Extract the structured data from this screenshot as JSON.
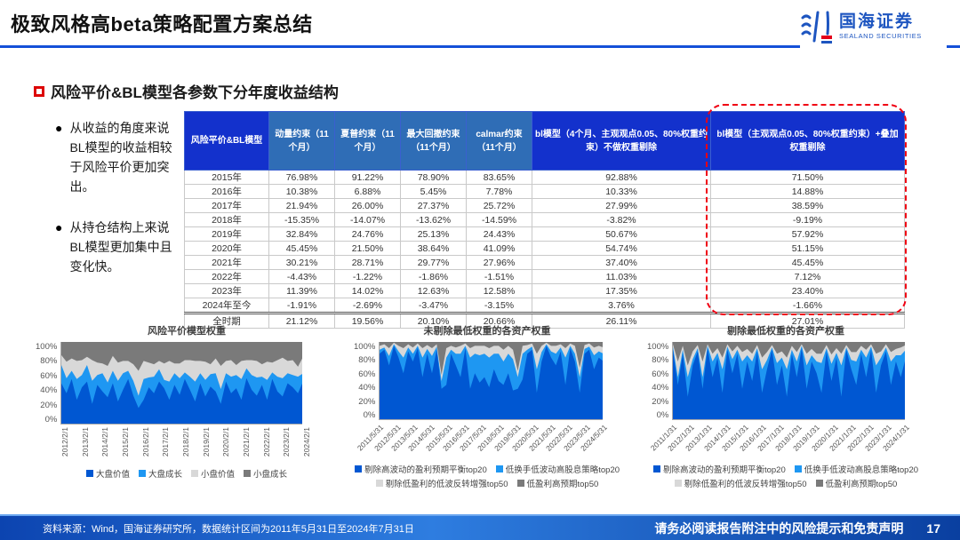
{
  "header": {
    "title": "极致风格高beta策略配置方案总结",
    "logo_cn": "国海证券",
    "logo_en": "SEALAND SECURITIES"
  },
  "section": {
    "heading": "风险平价&BL模型各参数下分年度收益结构"
  },
  "bullets": [
    "从收益的角度来说BL模型的收益相较于风险平价更加突出。",
    "从持仓结构上来说BL模型更加集中且变化快。"
  ],
  "colors": {
    "accent_blue": "#1331cc",
    "steel_blue": "#2f6db6",
    "underline_blue": "#1450d8",
    "highlight_red": "#f00012",
    "chart_dark_blue": "#0057d2",
    "chart_bright_blue": "#1e97f2",
    "chart_light_gray": "#d8d8d8",
    "chart_dark_gray": "#7a7a7a"
  },
  "table": {
    "col_headers": [
      "风险平价&BL模型",
      "动量约束（11个月）",
      "夏普约束（11个月）",
      "最大回撤约束（11个月）",
      "calmar约束（11个月）",
      "bl模型（4个月、主观观点0.05、80%权重约束）不做权重剔除",
      "bl模型（主观观点0.05、80%权重约束）+叠加权重剔除"
    ],
    "rows": [
      {
        "label": "2015年",
        "values": [
          "76.98%",
          "91.22%",
          "78.90%",
          "83.65%",
          "92.88%",
          "71.50%"
        ]
      },
      {
        "label": "2016年",
        "values": [
          "10.38%",
          "6.88%",
          "5.45%",
          "7.78%",
          "10.33%",
          "14.88%"
        ]
      },
      {
        "label": "2017年",
        "values": [
          "21.94%",
          "26.00%",
          "27.37%",
          "25.72%",
          "27.99%",
          "38.59%"
        ]
      },
      {
        "label": "2018年",
        "values": [
          "-15.35%",
          "-14.07%",
          "-13.62%",
          "-14.59%",
          "-3.82%",
          "-9.19%"
        ]
      },
      {
        "label": "2019年",
        "values": [
          "32.84%",
          "24.76%",
          "25.13%",
          "24.43%",
          "50.67%",
          "57.92%"
        ]
      },
      {
        "label": "2020年",
        "values": [
          "45.45%",
          "21.50%",
          "38.64%",
          "41.09%",
          "54.74%",
          "51.15%"
        ]
      },
      {
        "label": "2021年",
        "values": [
          "30.21%",
          "28.71%",
          "29.77%",
          "27.96%",
          "37.40%",
          "45.45%"
        ]
      },
      {
        "label": "2022年",
        "values": [
          "-4.43%",
          "-1.22%",
          "-1.86%",
          "-1.51%",
          "11.03%",
          "7.12%"
        ]
      },
      {
        "label": "2023年",
        "values": [
          "11.39%",
          "14.02%",
          "12.63%",
          "12.58%",
          "17.35%",
          "23.40%"
        ]
      },
      {
        "label": "2024年至今",
        "values": [
          "-1.91%",
          "-2.69%",
          "-3.47%",
          "-3.15%",
          "3.76%",
          "-1.66%"
        ]
      },
      {
        "label": "全时期",
        "values": [
          "21.12%",
          "19.56%",
          "20.10%",
          "20.66%",
          "26.11%",
          "27.01%"
        ]
      }
    ]
  },
  "chart_data": [
    {
      "type": "area",
      "stacked_percent": true,
      "title": "风险平价模型权重",
      "ylim": [
        0,
        100
      ],
      "y_ticks": [
        "100%",
        "80%",
        "60%",
        "40%",
        "20%",
        "0%"
      ],
      "x_ticks": [
        "2012/2/1",
        "2013/2/1",
        "2014/2/1",
        "2015/2/1",
        "2016/2/1",
        "2017/2/1",
        "2018/2/1",
        "2019/2/1",
        "2020/2/1",
        "2021/2/1",
        "2022/2/1",
        "2023/2/1",
        "2024/2/1"
      ],
      "legend": [
        "大盘价值",
        "大盘成长",
        "小盘价值",
        "小盘成长"
      ],
      "series": [
        {
          "name": "大盘价值",
          "color": "#0057d2",
          "values": [
            50,
            38,
            55,
            30,
            45,
            52,
            25,
            48,
            40,
            33,
            50,
            28,
            42,
            55,
            35,
            20,
            30,
            45,
            38,
            52,
            44,
            30,
            48,
            36,
            55,
            42,
            28,
            50,
            34,
            46,
            40,
            25,
            52,
            38,
            44,
            30,
            56,
            42,
            35,
            48,
            30,
            55,
            40,
            34,
            50,
            45,
            38,
            52
          ]
        },
        {
          "name": "大盘成长",
          "color": "#1e97f2",
          "values": [
            22,
            18,
            10,
            25,
            15,
            20,
            28,
            12,
            22,
            18,
            15,
            25,
            20,
            10,
            18,
            15,
            25,
            12,
            20,
            15,
            10,
            22,
            14,
            20,
            8,
            16,
            24,
            12,
            20,
            15,
            22,
            18,
            10,
            20,
            16,
            25,
            12,
            18,
            22,
            10,
            24,
            8,
            18,
            22,
            12,
            15,
            20,
            10
          ]
        },
        {
          "name": "小盘价值",
          "color": "#d8d8d8",
          "values": [
            12,
            20,
            15,
            22,
            18,
            10,
            25,
            15,
            12,
            20,
            18,
            22,
            15,
            12,
            20,
            30,
            22,
            18,
            15,
            10,
            20,
            25,
            12,
            18,
            15,
            20,
            25,
            15,
            22,
            12,
            18,
            28,
            15,
            20,
            12,
            22,
            10,
            18,
            20,
            15,
            22,
            12,
            20,
            25,
            15,
            18,
            12,
            20
          ]
        }
      ],
      "top_series": {
        "name": "小盘成长",
        "color": "#7a7a7a",
        "fills_to": 100
      }
    },
    {
      "type": "area",
      "stacked_percent": true,
      "title": "未剔除最低权重的各资产权重",
      "ylim": [
        0,
        100
      ],
      "y_ticks": [
        "100%",
        "80%",
        "60%",
        "40%",
        "20%",
        "0%"
      ],
      "x_ticks": [
        "2011/5/31",
        "2012/5/31",
        "2013/5/31",
        "2014/5/31",
        "2015/5/31",
        "2016/5/31",
        "2017/5/31",
        "2018/5/31",
        "2019/5/31",
        "2020/5/31",
        "2021/5/31",
        "2022/5/31",
        "2023/5/31",
        "2024/5/31"
      ],
      "legend": [
        "剔除高波动的盈利预期平衡top20",
        "低换手低波动高股息策略top20",
        "剔除低盈利的低波反转增强top50",
        "低盈利高预期top50"
      ],
      "series": [
        {
          "name": "剔除高波动的盈利预期平衡top20",
          "color": "#0057d2",
          "values": [
            85,
            90,
            70,
            95,
            80,
            60,
            88,
            75,
            92,
            55,
            85,
            60,
            90,
            40,
            45,
            85,
            70,
            55,
            92,
            40,
            60,
            48,
            55,
            42,
            65,
            50,
            45,
            60,
            38,
            40,
            52,
            85,
            90,
            35,
            75,
            95,
            80,
            70,
            88,
            45,
            92,
            75,
            35,
            85,
            90,
            65,
            80,
            75
          ]
        },
        {
          "name": "低换手低波动高股息策略top20",
          "color": "#1e97f2",
          "values": [
            5,
            3,
            12,
            2,
            8,
            20,
            5,
            10,
            3,
            25,
            6,
            22,
            4,
            10,
            35,
            5,
            15,
            30,
            3,
            40,
            25,
            35,
            30,
            38,
            20,
            35,
            30,
            25,
            40,
            15,
            33,
            5,
            4,
            30,
            12,
            2,
            8,
            15,
            5,
            35,
            3,
            10,
            20,
            6,
            4,
            18,
            8,
            10
          ]
        },
        {
          "name": "剔除低盈利的低波反转增强top50",
          "color": "#d8d8d8",
          "values": [
            5,
            4,
            10,
            2,
            7,
            12,
            4,
            8,
            3,
            12,
            5,
            10,
            3,
            8,
            12,
            5,
            8,
            10,
            3,
            12,
            10,
            12,
            10,
            12,
            10,
            10,
            15,
            10,
            12,
            8,
            10,
            6,
            4,
            20,
            8,
            2,
            7,
            10,
            4,
            12,
            3,
            10,
            12,
            5,
            4,
            10,
            7,
            8
          ]
        }
      ],
      "top_series": {
        "name": "低盈利高预期top50",
        "color": "#7a7a7a",
        "fills_to": 100
      }
    },
    {
      "type": "area",
      "stacked_percent": true,
      "title": "剔除最低权重的各资产权重",
      "ylim": [
        0,
        100
      ],
      "y_ticks": [
        "100%",
        "80%",
        "60%",
        "40%",
        "20%",
        "0%"
      ],
      "x_ticks": [
        "2011/1/31",
        "2012/1/31",
        "2013/1/31",
        "2014/1/31",
        "2015/1/31",
        "2016/1/31",
        "2017/1/31",
        "2018/1/31",
        "2019/1/31",
        "2020/1/31",
        "2021/1/31",
        "2022/1/31",
        "2023/1/31",
        "2024/1/31"
      ],
      "legend": [
        "剔除高波动的盈利预期平衡top20",
        "低换手低波动高股息策略top20",
        "剔除低盈利的低波反转增强top50",
        "低盈利高预期top50"
      ],
      "series": [
        {
          "name": "剔除高波动的盈利预期平衡top20",
          "color": "#0057d2",
          "values": [
            90,
            45,
            85,
            30,
            70,
            88,
            40,
            92,
            55,
            80,
            35,
            90,
            60,
            85,
            40,
            75,
            50,
            88,
            35,
            65,
            90,
            45,
            70,
            30,
            85,
            55,
            92,
            40,
            75,
            60,
            35,
            88,
            50,
            80,
            30,
            90,
            65,
            45,
            85,
            55,
            90,
            35,
            70,
            88,
            45,
            75,
            55,
            80
          ]
        },
        {
          "name": "低换手低波动高股息策略top20",
          "color": "#1e97f2",
          "values": [
            4,
            10,
            5,
            25,
            8,
            4,
            15,
            3,
            20,
            6,
            30,
            4,
            18,
            5,
            35,
            8,
            25,
            4,
            30,
            12,
            3,
            28,
            10,
            35,
            5,
            20,
            3,
            30,
            8,
            15,
            38,
            4,
            22,
            6,
            40,
            3,
            12,
            30,
            5,
            25,
            4,
            35,
            10,
            5,
            30,
            8,
            28,
            10
          ]
        },
        {
          "name": "剔除低盈利的低波反转增强top50",
          "color": "#d8d8d8",
          "values": [
            3,
            20,
            5,
            15,
            10,
            4,
            20,
            2,
            10,
            6,
            15,
            3,
            10,
            5,
            12,
            8,
            10,
            4,
            15,
            10,
            3,
            12,
            8,
            15,
            5,
            12,
            2,
            15,
            8,
            10,
            12,
            4,
            12,
            6,
            15,
            3,
            10,
            12,
            5,
            10,
            3,
            15,
            8,
            4,
            12,
            8,
            10,
            6
          ]
        }
      ],
      "top_series": {
        "name": "低盈利高预期top50",
        "color": "#7a7a7a",
        "fills_to": 100
      }
    }
  ],
  "footer": {
    "source": "资料来源：Wind，国海证券研究所，数据统计区间为2011年5月31日至2024年7月31日",
    "disclaimer": "请务必阅读报告附注中的风险提示和免责声明",
    "page": "17"
  }
}
